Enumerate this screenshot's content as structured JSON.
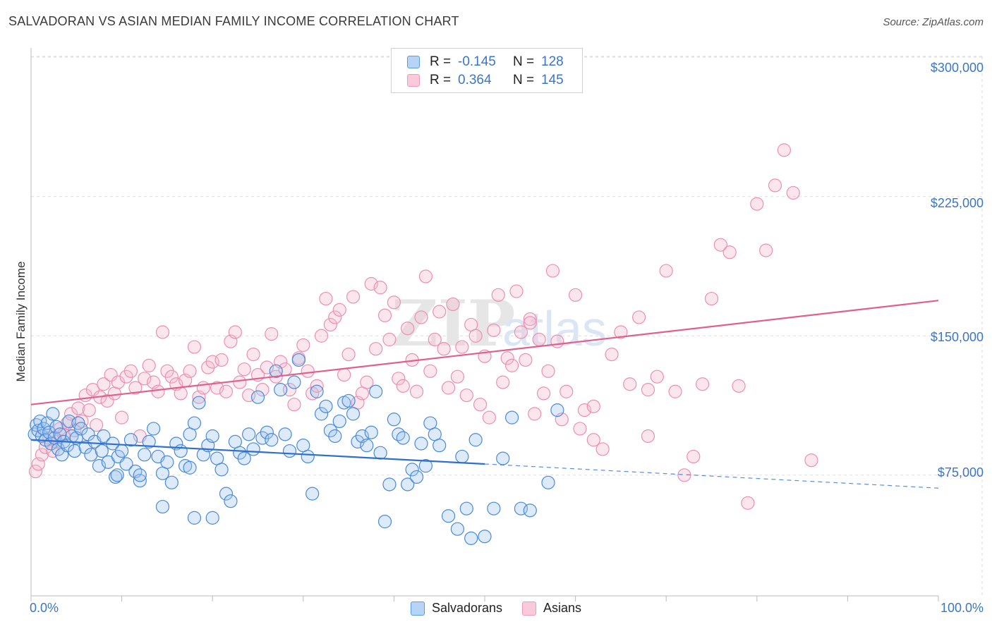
{
  "title": "SALVADORAN VS ASIAN MEDIAN FAMILY INCOME CORRELATION CHART",
  "source": "Source: ZipAtlas.com",
  "colors": {
    "blue": "#5b9be0",
    "blue_line": "#2f6fcf",
    "pink": "#f09ab8",
    "pink_line": "#e0608c",
    "axis_text": "#3b76c4"
  },
  "legend_top": [
    {
      "r_label": "R =",
      "r_value": "-0.145",
      "n_label": "N =",
      "n_value": "128"
    },
    {
      "r_label": "R =",
      "r_value": "0.364",
      "n_label": "N =",
      "n_value": "145"
    }
  ],
  "legend_bottom": [
    "Salvadorans",
    "Asians"
  ],
  "chart_data": {
    "type": "scatter",
    "title": "SALVADORAN VS ASIAN MEDIAN FAMILY INCOME CORRELATION CHART",
    "ylabel": "Median Family Income",
    "xlabel": "",
    "x_tick_labels": [
      "0.0%",
      "100.0%"
    ],
    "y_tick_labels": [
      "$75,000",
      "$150,000",
      "$225,000",
      "$300,000"
    ],
    "y_ticks": [
      75000,
      150000,
      225000,
      300000
    ],
    "xlim": [
      0,
      100
    ],
    "ylim": [
      10000,
      305000
    ],
    "grid": true,
    "legend_position": "top-center",
    "series": [
      {
        "name": "Salvadorans",
        "r": -0.145,
        "n": 128,
        "trend": {
          "x0": 0,
          "y0": 94000,
          "x1": 50,
          "y1": 81000,
          "dashed_to_x": 100,
          "dashed_to_y": 68000
        },
        "points": [
          [
            0.4,
            97
          ],
          [
            0.6,
            102
          ],
          [
            0.8,
            99
          ],
          [
            1,
            104
          ],
          [
            1.2,
            96
          ],
          [
            1.4,
            100
          ],
          [
            1.6,
            94
          ],
          [
            1.8,
            103
          ],
          [
            2,
            98
          ],
          [
            2.2,
            92
          ],
          [
            2.4,
            108
          ],
          [
            2.6,
            95
          ],
          [
            2.8,
            101
          ],
          [
            3,
            89
          ],
          [
            3.2,
            97
          ],
          [
            3.4,
            86
          ],
          [
            3.6,
            93
          ],
          [
            4,
            91
          ],
          [
            4.2,
            104
          ],
          [
            4.5,
            96
          ],
          [
            4.8,
            88
          ],
          [
            5,
            95
          ],
          [
            5.2,
            103
          ],
          [
            5.5,
            100
          ],
          [
            6,
            90
          ],
          [
            6.3,
            97
          ],
          [
            6.6,
            86
          ],
          [
            7,
            93
          ],
          [
            7.5,
            80
          ],
          [
            7.8,
            88
          ],
          [
            8,
            96
          ],
          [
            8.5,
            82
          ],
          [
            9,
            92
          ],
          [
            9.3,
            74
          ],
          [
            9.6,
            85
          ],
          [
            10,
            88
          ],
          [
            10.5,
            81
          ],
          [
            11,
            94
          ],
          [
            11.5,
            77
          ],
          [
            12,
            72
          ],
          [
            12.5,
            86
          ],
          [
            13,
            93
          ],
          [
            13.5,
            100
          ],
          [
            14,
            85
          ],
          [
            14.5,
            76
          ],
          [
            15,
            82
          ],
          [
            15.5,
            71
          ],
          [
            16,
            92
          ],
          [
            16.5,
            88
          ],
          [
            17,
            80
          ],
          [
            17.5,
            97
          ],
          [
            18,
            103
          ],
          [
            18.5,
            114
          ],
          [
            19,
            86
          ],
          [
            19.5,
            91
          ],
          [
            20,
            96
          ],
          [
            20.5,
            84
          ],
          [
            21,
            78
          ],
          [
            21.5,
            65
          ],
          [
            22,
            61
          ],
          [
            22.5,
            93
          ],
          [
            23,
            87
          ],
          [
            23.5,
            84
          ],
          [
            24,
            97
          ],
          [
            24.5,
            89
          ],
          [
            25,
            117
          ],
          [
            25.5,
            95
          ],
          [
            26,
            98
          ],
          [
            26.5,
            94
          ],
          [
            27,
            131
          ],
          [
            27.5,
            121
          ],
          [
            28,
            97
          ],
          [
            28.5,
            88
          ],
          [
            29,
            125
          ],
          [
            29.5,
            137
          ],
          [
            30,
            91
          ],
          [
            30.5,
            85
          ],
          [
            31,
            65
          ],
          [
            31.5,
            120
          ],
          [
            32,
            108
          ],
          [
            32.5,
            112
          ],
          [
            33,
            99
          ],
          [
            33.5,
            96
          ],
          [
            34,
            104
          ],
          [
            34.5,
            114
          ],
          [
            35,
            115
          ],
          [
            35.5,
            108
          ],
          [
            36,
            93
          ],
          [
            36.5,
            96
          ],
          [
            37,
            91
          ],
          [
            37.5,
            98
          ],
          [
            38,
            120
          ],
          [
            38.5,
            87
          ],
          [
            39,
            50
          ],
          [
            39.5,
            70
          ],
          [
            40,
            105
          ],
          [
            40.5,
            97
          ],
          [
            41,
            95
          ],
          [
            41.5,
            70
          ],
          [
            42,
            78
          ],
          [
            42.5,
            74
          ],
          [
            43,
            92
          ],
          [
            43.5,
            80
          ],
          [
            44,
            103
          ],
          [
            44.5,
            97
          ],
          [
            45,
            91
          ],
          [
            46,
            53
          ],
          [
            47,
            46
          ],
          [
            47.5,
            85
          ],
          [
            48,
            57
          ],
          [
            48.5,
            41
          ],
          [
            49,
            94
          ],
          [
            50,
            42
          ],
          [
            51,
            57
          ],
          [
            52,
            84
          ],
          [
            53,
            106
          ],
          [
            54,
            57
          ],
          [
            55,
            56
          ],
          [
            57,
            71
          ],
          [
            58,
            110
          ],
          [
            18,
            52
          ],
          [
            20,
            52
          ],
          [
            14.5,
            58
          ],
          [
            17.5,
            79
          ],
          [
            12,
            75
          ],
          [
            9.5,
            75
          ]
        ]
      },
      {
        "name": "Asians",
        "r": 0.364,
        "n": 145,
        "trend": {
          "x0": 0,
          "y0": 113000,
          "x1": 100,
          "y1": 169000
        },
        "points": [
          [
            0.5,
            77
          ],
          [
            0.8,
            81
          ],
          [
            1.2,
            86
          ],
          [
            1.6,
            90
          ],
          [
            2,
            95
          ],
          [
            2.4,
            88
          ],
          [
            2.8,
            93
          ],
          [
            3.2,
            100
          ],
          [
            3.6,
            97
          ],
          [
            4,
            103
          ],
          [
            4.4,
            108
          ],
          [
            4.8,
            99
          ],
          [
            5.2,
            111
          ],
          [
            5.6,
            104
          ],
          [
            6,
            118
          ],
          [
            6.4,
            110
          ],
          [
            6.8,
            121
          ],
          [
            7.2,
            102
          ],
          [
            7.6,
            117
          ],
          [
            8,
            124
          ],
          [
            8.4,
            115
          ],
          [
            8.8,
            129
          ],
          [
            9.2,
            119
          ],
          [
            9.6,
            125
          ],
          [
            10,
            106
          ],
          [
            10.5,
            128
          ],
          [
            11,
            131
          ],
          [
            11.5,
            122
          ],
          [
            12,
            96
          ],
          [
            12.5,
            127
          ],
          [
            13,
            134
          ],
          [
            13.5,
            125
          ],
          [
            14,
            120
          ],
          [
            14.5,
            152
          ],
          [
            15,
            131
          ],
          [
            15.5,
            128
          ],
          [
            16,
            124
          ],
          [
            16.5,
            119
          ],
          [
            17,
            126
          ],
          [
            17.5,
            131
          ],
          [
            18,
            144
          ],
          [
            18.5,
            117
          ],
          [
            19,
            122
          ],
          [
            19.5,
            133
          ],
          [
            20,
            136
          ],
          [
            20.5,
            122
          ],
          [
            21,
            137
          ],
          [
            21.5,
            120
          ],
          [
            22,
            147
          ],
          [
            22.5,
            152
          ],
          [
            23,
            125
          ],
          [
            23.5,
            132
          ],
          [
            24,
            118
          ],
          [
            24.5,
            140
          ],
          [
            25,
            129
          ],
          [
            25.5,
            121
          ],
          [
            26,
            133
          ],
          [
            26.5,
            151
          ],
          [
            27,
            128
          ],
          [
            27.5,
            136
          ],
          [
            28,
            132
          ],
          [
            28.5,
            121
          ],
          [
            29,
            113
          ],
          [
            29.5,
            138
          ],
          [
            30,
            145
          ],
          [
            30.5,
            131
          ],
          [
            31,
            119
          ],
          [
            31.5,
            123
          ],
          [
            32,
            150
          ],
          [
            32.5,
            170
          ],
          [
            33,
            156
          ],
          [
            33.5,
            160
          ],
          [
            34,
            164
          ],
          [
            34.5,
            129
          ],
          [
            35,
            140
          ],
          [
            35.5,
            171
          ],
          [
            36,
            114
          ],
          [
            36.5,
            119
          ],
          [
            37,
            125
          ],
          [
            37.5,
            178
          ],
          [
            38,
            143
          ],
          [
            38.5,
            176
          ],
          [
            39,
            161
          ],
          [
            39.5,
            148
          ],
          [
            40,
            168
          ],
          [
            40.5,
            127
          ],
          [
            41,
            123
          ],
          [
            41.5,
            154
          ],
          [
            42,
            137
          ],
          [
            42.5,
            120
          ],
          [
            43,
            160
          ],
          [
            43.5,
            182
          ],
          [
            44,
            131
          ],
          [
            44.5,
            148
          ],
          [
            45,
            163
          ],
          [
            45.5,
            143
          ],
          [
            46,
            122
          ],
          [
            46.5,
            167
          ],
          [
            47,
            128
          ],
          [
            47.5,
            144
          ],
          [
            48,
            118
          ],
          [
            48.5,
            156
          ],
          [
            49,
            150
          ],
          [
            49.5,
            113
          ],
          [
            50,
            139
          ],
          [
            50.5,
            106
          ],
          [
            51,
            153
          ],
          [
            51.5,
            172
          ],
          [
            52,
            125
          ],
          [
            52.5,
            138
          ],
          [
            53,
            134
          ],
          [
            53.5,
            174
          ],
          [
            54,
            152
          ],
          [
            54.5,
            137
          ],
          [
            55,
            159
          ],
          [
            55.5,
            108
          ],
          [
            56,
            148
          ],
          [
            56.5,
            119
          ],
          [
            57,
            131
          ],
          [
            57.5,
            185
          ],
          [
            58,
            147
          ],
          [
            58.5,
            105
          ],
          [
            59,
            120
          ],
          [
            60,
            172
          ],
          [
            60.5,
            100
          ],
          [
            61,
            110
          ],
          [
            62,
            94
          ],
          [
            63,
            89
          ],
          [
            64,
            140
          ],
          [
            65,
            152
          ],
          [
            66,
            124
          ],
          [
            67,
            160
          ],
          [
            68,
            96
          ],
          [
            69,
            128
          ],
          [
            70,
            185
          ],
          [
            71,
            120
          ],
          [
            72,
            75
          ],
          [
            73,
            85
          ],
          [
            74,
            124
          ],
          [
            75,
            170
          ],
          [
            76,
            199
          ],
          [
            77,
            195
          ],
          [
            78,
            123
          ],
          [
            79,
            60
          ],
          [
            80,
            221
          ],
          [
            81,
            196
          ],
          [
            82,
            231
          ],
          [
            83,
            250
          ],
          [
            84,
            227
          ],
          [
            86,
            83
          ],
          [
            68,
            121
          ],
          [
            62,
            112
          ],
          [
            55,
            157
          ]
        ]
      }
    ]
  }
}
